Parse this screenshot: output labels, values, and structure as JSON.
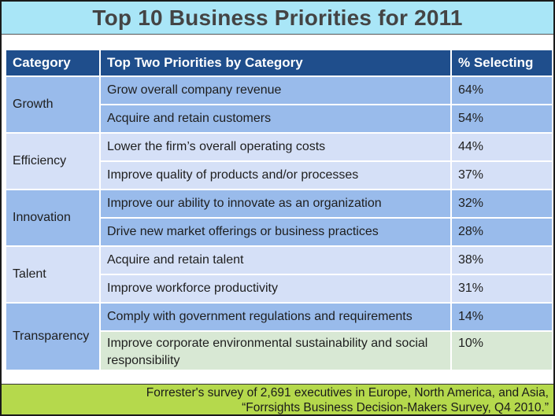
{
  "title": "Top 10 Business Priorities for 2011",
  "table": {
    "headers": [
      "Category",
      "Top Two Priorities by Category",
      "% Selecting"
    ],
    "groups": [
      {
        "category": "Growth",
        "rows": [
          {
            "priority": "Grow overall company revenue",
            "pct": "64%"
          },
          {
            "priority": "Acquire and retain customers",
            "pct": "54%"
          }
        ]
      },
      {
        "category": "Efficiency",
        "rows": [
          {
            "priority": "Lower the firm’s overall operating costs",
            "pct": "44%"
          },
          {
            "priority": "Improve quality of products and/or processes",
            "pct": "37%"
          }
        ]
      },
      {
        "category": "Innovation",
        "rows": [
          {
            "priority": "Improve our ability to innovate as an organization",
            "pct": "32%"
          },
          {
            "priority": "Drive new market offerings or business practices",
            "pct": "28%"
          }
        ]
      },
      {
        "category": "Talent",
        "rows": [
          {
            "priority": "Acquire and retain talent",
            "pct": "38%"
          },
          {
            "priority": "Improve workforce productivity",
            "pct": "31%"
          }
        ]
      },
      {
        "category": "Transparency",
        "rows": [
          {
            "priority": "Comply with government regulations and requirements",
            "pct": "14%"
          },
          {
            "priority": "Improve corporate environmental sustainability and social responsibility",
            "pct": "10%"
          }
        ]
      }
    ]
  },
  "footer": {
    "line1": "Forrester's survey of 2,691 executives in Europe, North America, and Asia,",
    "line2": "“Forrsights Business Decision-Makers Survey, Q4 2010.”"
  },
  "colors": {
    "title_bg": "#a9e6f7",
    "header_bg": "#1f4e8c",
    "row_dark": "#99bbeb",
    "row_light": "#d5e0f7",
    "row_green": "#d8e8d4",
    "footer_bg": "#b5d94c"
  }
}
